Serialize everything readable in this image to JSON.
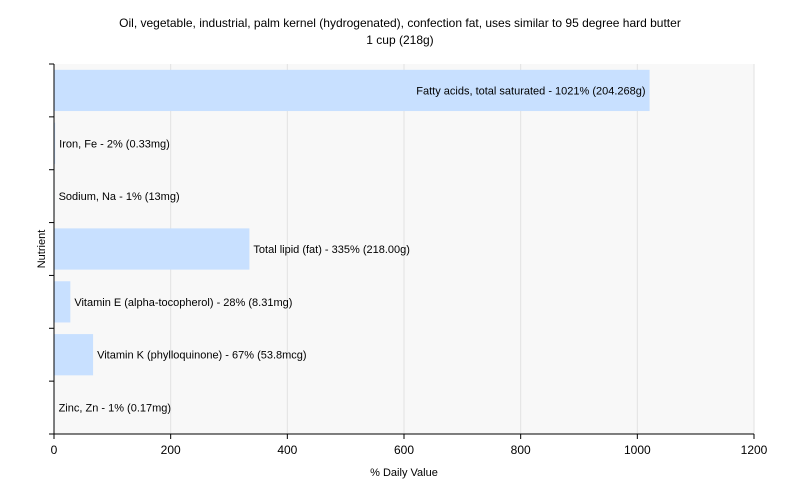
{
  "chart_data": {
    "type": "bar",
    "orientation": "horizontal",
    "title": "Oil, vegetable, industrial, palm kernel (hydrogenated), confection fat, uses similar to 95 degree hard butter",
    "subtitle": "1 cup (218g)",
    "xlabel": "% Daily Value",
    "ylabel": "Nutrient",
    "xlim": [
      0,
      1200
    ],
    "xticks": [
      0,
      200,
      400,
      600,
      800,
      1000,
      1200
    ],
    "grid": true,
    "bar_color": "#c8e0ff",
    "plot_background": "#f8f8f8",
    "categories": [
      "Fatty acids, total saturated",
      "Iron, Fe",
      "Sodium, Na",
      "Total lipid (fat)",
      "Vitamin E (alpha-tocopherol)",
      "Vitamin K (phylloquinone)",
      "Zinc, Zn"
    ],
    "values": [
      1021,
      2,
      1,
      335,
      28,
      67,
      1
    ],
    "labels": [
      "Fatty acids, total saturated - 1021% (204.268g)",
      "Iron, Fe - 2% (0.33mg)",
      "Sodium, Na - 1% (13mg)",
      "Total lipid (fat) - 335% (218.00g)",
      "Vitamin E (alpha-tocopherol) - 28% (8.31mg)",
      "Vitamin K (phylloquinone) - 67% (53.8mcg)",
      "Zinc, Zn - 1% (0.17mg)"
    ]
  }
}
